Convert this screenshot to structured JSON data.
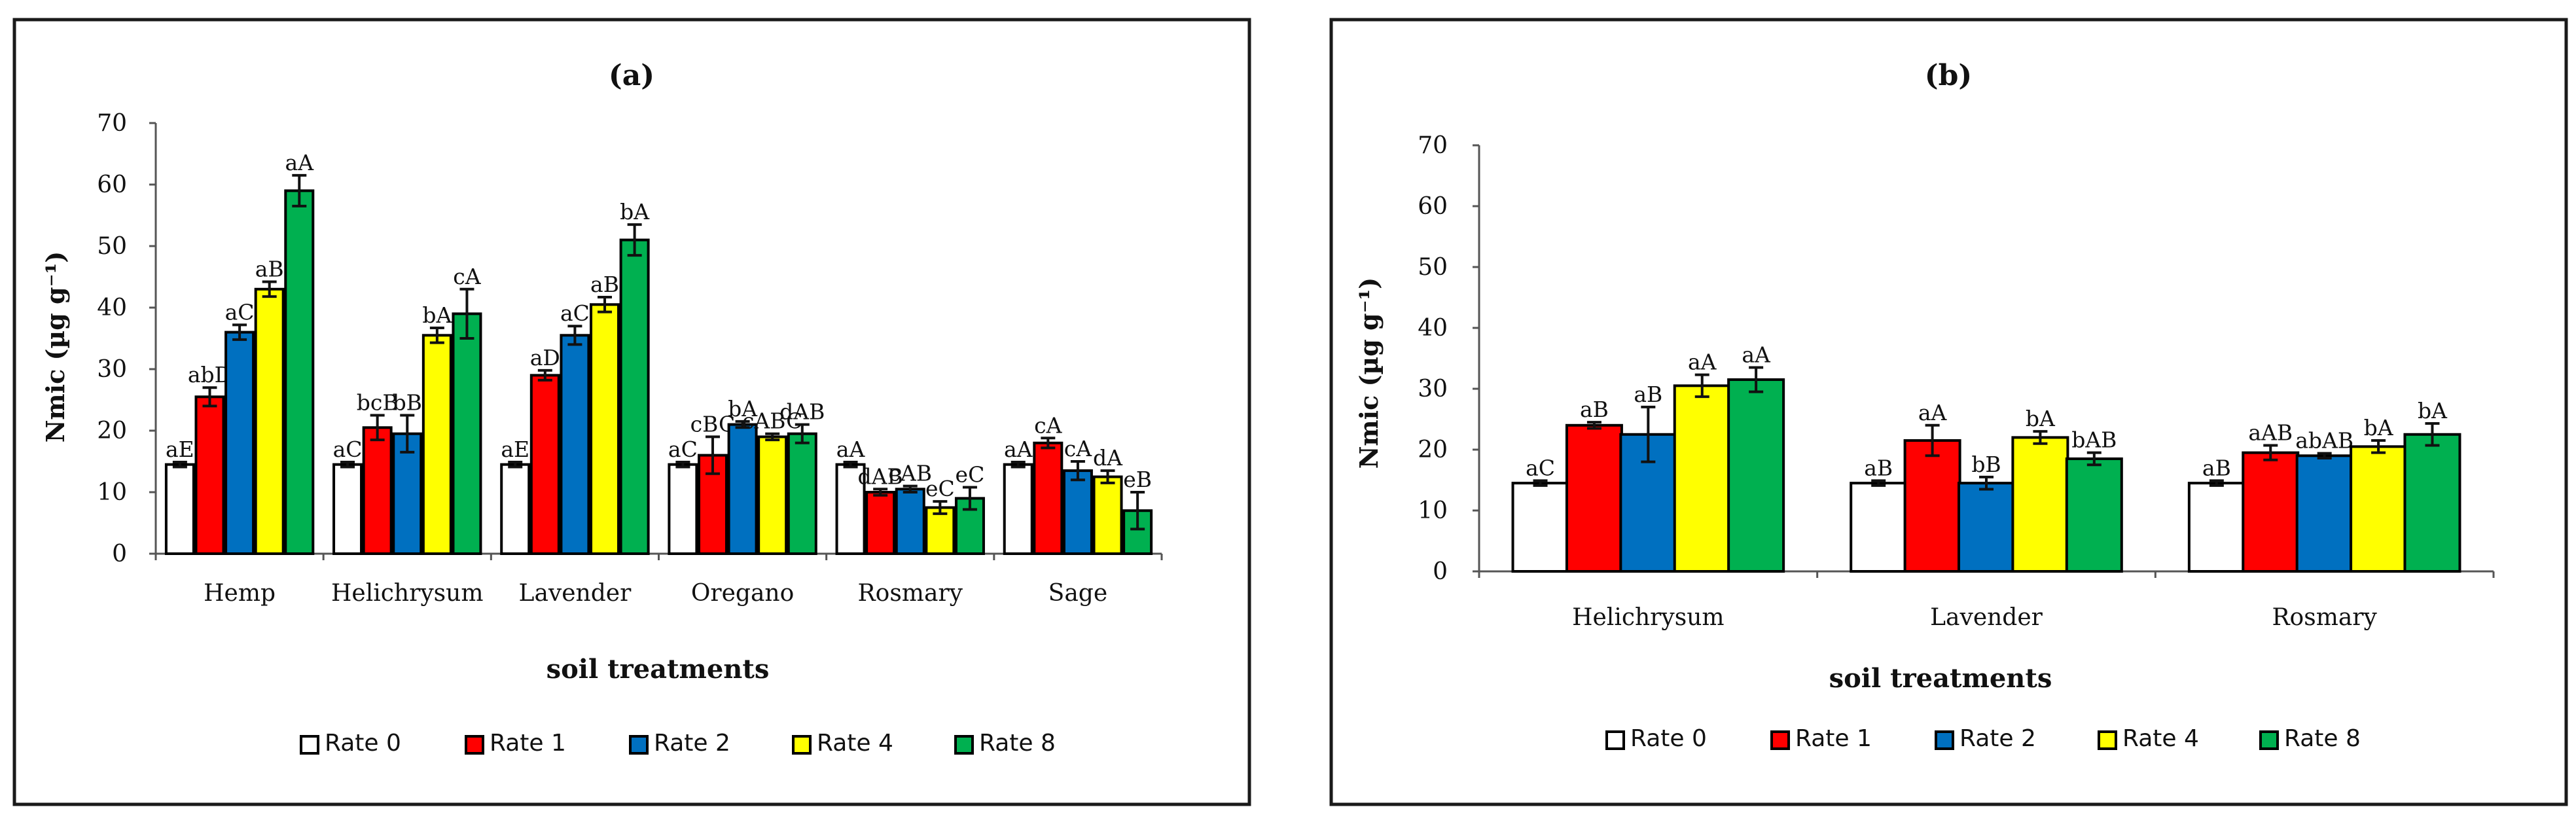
{
  "chart_data": [
    {
      "type": "bar",
      "title": "(a)",
      "xlabel": "soil treatments",
      "ylabel": "Nmic (µg g⁻¹)",
      "ylim": [
        0,
        70
      ],
      "yticks": [
        0,
        10,
        20,
        30,
        40,
        50,
        60,
        70
      ],
      "categories": [
        "Hemp",
        "Helichrysum",
        "Lavender",
        "Oregano",
        "Rosmary",
        "Sage"
      ],
      "legend_position": "bottom",
      "series": [
        {
          "name": "Rate 0",
          "color": "#ffffff",
          "values": [
            14.5,
            14.5,
            14.5,
            14.5,
            14.5,
            14.5
          ],
          "errors": [
            0.4,
            0.4,
            0.4,
            0.4,
            0.4,
            0.4
          ],
          "labels": [
            "aE",
            "aC",
            "aE",
            "aC",
            "aA",
            "aA"
          ]
        },
        {
          "name": "Rate 1",
          "color": "#ff0000",
          "values": [
            25.5,
            20.5,
            29.0,
            16.0,
            10.0,
            18.0
          ],
          "errors": [
            1.5,
            2.0,
            0.8,
            3.0,
            0.5,
            0.8
          ],
          "labels": [
            "abD",
            "bcB",
            "aD",
            "cBC",
            "dAB",
            "cA"
          ]
        },
        {
          "name": "Rate 2",
          "color": "#0070c0",
          "values": [
            36.0,
            19.5,
            35.5,
            21.0,
            10.5,
            13.5
          ],
          "errors": [
            1.2,
            3.0,
            1.5,
            0.5,
            0.5,
            1.5
          ],
          "labels": [
            "aC",
            "bB",
            "aC",
            "bA",
            "cAB",
            "cA"
          ]
        },
        {
          "name": "Rate 4",
          "color": "#ffff00",
          "values": [
            43.0,
            35.5,
            40.5,
            19.0,
            7.5,
            12.5
          ],
          "errors": [
            1.2,
            1.2,
            1.2,
            0.5,
            1.0,
            1.0
          ],
          "labels": [
            "aB",
            "bA",
            "aB",
            "cABC",
            "eC",
            "dA"
          ]
        },
        {
          "name": "Rate 8",
          "color": "#00b050",
          "values": [
            59.0,
            39.0,
            51.0,
            19.5,
            9.0,
            7.0
          ],
          "errors": [
            2.5,
            4.0,
            2.5,
            1.5,
            1.8,
            3.0
          ],
          "labels": [
            "aA",
            "cA",
            "bA",
            "dAB",
            "eC",
            "eB"
          ]
        }
      ]
    },
    {
      "type": "bar",
      "title": "(b)",
      "xlabel": "soil treatments",
      "ylabel": "Nmic (µg g⁻¹)",
      "ylim": [
        0,
        70
      ],
      "yticks": [
        0,
        10,
        20,
        30,
        40,
        50,
        60,
        70
      ],
      "categories": [
        "Helichrysum",
        "Lavender",
        "Rosmary"
      ],
      "legend_position": "bottom",
      "series": [
        {
          "name": "Rate 0",
          "color": "#ffffff",
          "values": [
            14.5,
            14.5,
            14.5
          ],
          "errors": [
            0.4,
            0.4,
            0.4
          ],
          "labels": [
            "aC",
            "aB",
            "aB"
          ]
        },
        {
          "name": "Rate 1",
          "color": "#ff0000",
          "values": [
            24.0,
            21.5,
            19.5
          ],
          "errors": [
            0.5,
            2.5,
            1.2
          ],
          "labels": [
            "aB",
            "aA",
            "aAB"
          ]
        },
        {
          "name": "Rate 2",
          "color": "#0070c0",
          "values": [
            22.5,
            14.5,
            19.0
          ],
          "errors": [
            4.5,
            1.0,
            0.4
          ],
          "labels": [
            "aB",
            "bB",
            "abAB"
          ]
        },
        {
          "name": "Rate 4",
          "color": "#ffff00",
          "values": [
            30.5,
            22.0,
            20.5
          ],
          "errors": [
            1.8,
            1.0,
            1.0
          ],
          "labels": [
            "aA",
            "bA",
            "bA"
          ]
        },
        {
          "name": "Rate 8",
          "color": "#00b050",
          "values": [
            31.5,
            18.5,
            22.5
          ],
          "errors": [
            2.0,
            1.0,
            1.8
          ],
          "labels": [
            "aA",
            "bAB",
            "bA"
          ]
        }
      ]
    }
  ]
}
